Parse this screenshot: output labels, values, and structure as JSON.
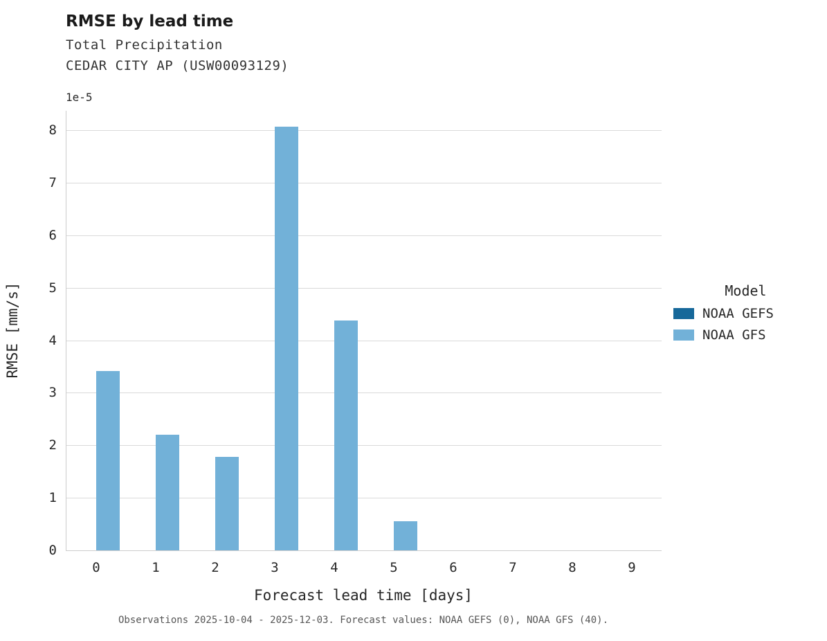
{
  "header": {
    "title": "RMSE by lead time",
    "subtitle1": "Total Precipitation",
    "subtitle2": "CEDAR CITY AP (USW00093129)"
  },
  "axes": {
    "offset_label": "1e-5",
    "ylabel": "RMSE [mm/s]",
    "xlabel": "Forecast lead time [days]"
  },
  "legend": {
    "title": "Model",
    "items": [
      {
        "label": "NOAA GEFS",
        "color": "#16689a"
      },
      {
        "label": "NOAA GFS",
        "color": "#72b1d8"
      }
    ]
  },
  "caption": "Observations 2025-10-04 - 2025-12-03. Forecast values: NOAA GEFS (0), NOAA GFS (40).",
  "chart_data": {
    "type": "bar",
    "title": "RMSE by lead time",
    "xlabel": "Forecast lead time [days]",
    "ylabel": "RMSE [mm/s]",
    "value_scale": "1e-5",
    "categories": [
      0,
      1,
      2,
      3,
      4,
      5,
      6,
      7,
      8,
      9
    ],
    "series": [
      {
        "name": "NOAA GEFS",
        "color": "#16689a",
        "values": [
          0,
          0,
          0,
          0,
          0,
          0,
          0,
          0,
          0,
          0
        ]
      },
      {
        "name": "NOAA GFS",
        "color": "#72b1d8",
        "values": [
          3.42,
          2.2,
          1.78,
          8.07,
          4.38,
          0.55,
          0,
          0,
          0,
          0
        ]
      }
    ],
    "yticks": [
      0,
      1,
      2,
      3,
      4,
      5,
      6,
      7,
      8
    ],
    "ylim": [
      0,
      8.37
    ],
    "grid": true,
    "legend_position": "right"
  }
}
